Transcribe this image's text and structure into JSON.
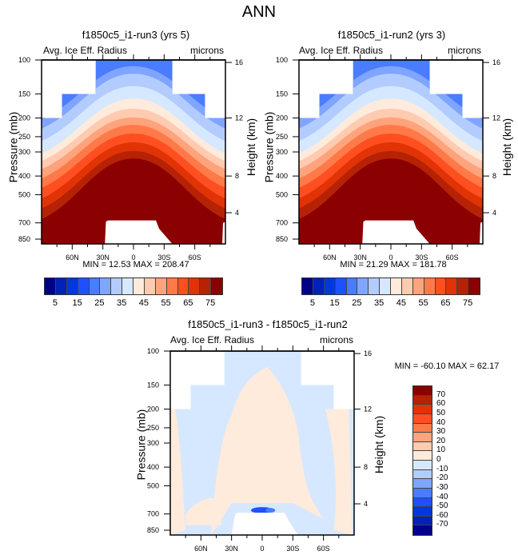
{
  "main_title": "ANN",
  "palette": [
    "#00008b",
    "#0022b8",
    "#0038e0",
    "#1e50ff",
    "#4a7cff",
    "#7fa5ff",
    "#b3ccff",
    "#d6e8ff",
    "#ffebdb",
    "#ffcbb0",
    "#ffa37c",
    "#ff7a48",
    "#ff4f20",
    "#e13305",
    "#b52205",
    "#8b0000"
  ],
  "chart_data": [
    {
      "type": "heatmap",
      "id": "run3",
      "title": "f1850c5_i1-run3 (yrs 5)",
      "left_label": "Avg. Ice Eff. Radius",
      "right_label": "microns",
      "ylabel": "Pressure (mb)",
      "ylabel_right": "Height (km)",
      "xticks": [
        "60N",
        "30N",
        "0",
        "30S",
        "60S"
      ],
      "yticks": [
        "100",
        "150",
        "200",
        "250",
        "300",
        "400",
        "500",
        "700",
        "850"
      ],
      "yticks_right": [
        "16",
        "12",
        "8",
        "4"
      ],
      "min_label": "MIN =  12.53  MAX = 208.47",
      "min": 12.53,
      "max": 208.47,
      "colorbar_labels": [
        "5",
        "15",
        "25",
        "35",
        "45",
        "55",
        "65",
        "75"
      ],
      "levels": [
        5,
        10,
        15,
        20,
        25,
        30,
        35,
        40,
        45,
        50,
        55,
        60,
        65,
        70,
        75
      ],
      "ylim": [
        100,
        900
      ],
      "xlim": [
        90,
        -90
      ]
    },
    {
      "type": "heatmap",
      "id": "run2",
      "title": "f1850c5_i1-run2 (yrs 3)",
      "left_label": "Avg. Ice Eff. Radius",
      "right_label": "microns",
      "ylabel": "Pressure (mb)",
      "ylabel_right": "Height (km)",
      "xticks": [
        "60N",
        "30N",
        "0",
        "30S",
        "60S"
      ],
      "yticks": [
        "100",
        "150",
        "200",
        "250",
        "300",
        "400",
        "500",
        "700",
        "850"
      ],
      "yticks_right": [
        "16",
        "12",
        "8",
        "4"
      ],
      "min_label": "MIN =  21.29  MAX = 181.78",
      "min": 21.29,
      "max": 181.78,
      "colorbar_labels": [
        "5",
        "15",
        "25",
        "35",
        "45",
        "55",
        "65",
        "75"
      ],
      "levels": [
        5,
        10,
        15,
        20,
        25,
        30,
        35,
        40,
        45,
        50,
        55,
        60,
        65,
        70,
        75
      ],
      "ylim": [
        100,
        900
      ],
      "xlim": [
        90,
        -90
      ]
    },
    {
      "type": "heatmap",
      "id": "diff",
      "title": "f1850c5_i1-run3 - f1850c5_i1-run2",
      "left_label": "Avg. Ice Eff. Radius",
      "right_label": "microns",
      "ylabel": "Pressure (mb)",
      "ylabel_right": "Height (km)",
      "xticks": [
        "60N",
        "30N",
        "0",
        "30S",
        "60S"
      ],
      "yticks": [
        "100",
        "150",
        "200",
        "250",
        "300",
        "400",
        "500",
        "700",
        "850"
      ],
      "yticks_right": [
        "16",
        "12",
        "8",
        "4"
      ],
      "min_label": "MIN = -60.10  MAX =  62.17",
      "min": -60.1,
      "max": 62.17,
      "colorbar_labels": [
        "70",
        "60",
        "50",
        "40",
        "30",
        "20",
        "10",
        "0",
        "-10",
        "-20",
        "-30",
        "-40",
        "-50",
        "-60",
        "-70"
      ],
      "levels": [
        -70,
        -60,
        -50,
        -40,
        -30,
        -20,
        -10,
        0,
        10,
        20,
        30,
        40,
        50,
        60,
        70
      ],
      "ylim": [
        100,
        900
      ],
      "xlim": [
        90,
        -90
      ]
    }
  ]
}
